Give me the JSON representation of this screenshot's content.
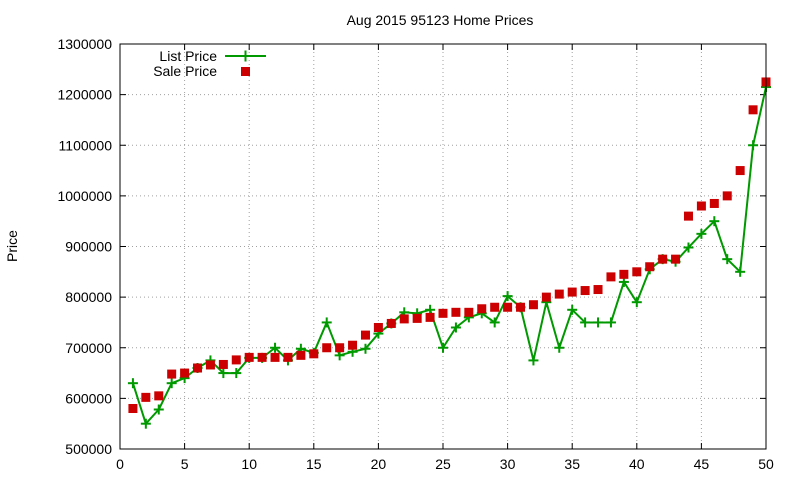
{
  "chart_data": {
    "type": "line",
    "title": "Aug 2015 95123 Home Prices",
    "xlabel": "",
    "ylabel": "Price",
    "xlim": [
      0,
      50
    ],
    "ylim": [
      500000,
      1300000
    ],
    "x_ticks": [
      0,
      5,
      10,
      15,
      20,
      25,
      30,
      35,
      40,
      45,
      50
    ],
    "y_ticks": [
      500000,
      600000,
      700000,
      800000,
      900000,
      1000000,
      1100000,
      1200000,
      1300000
    ],
    "grid": true,
    "legend_position": "top-left",
    "x": [
      1,
      2,
      3,
      4,
      5,
      6,
      7,
      8,
      9,
      10,
      11,
      12,
      13,
      14,
      15,
      16,
      17,
      18,
      19,
      20,
      21,
      22,
      23,
      24,
      25,
      26,
      27,
      28,
      29,
      30,
      31,
      32,
      33,
      34,
      35,
      36,
      37,
      38,
      39,
      40,
      41,
      42,
      43,
      44,
      45,
      46,
      47,
      48,
      49,
      50
    ],
    "series": [
      {
        "name": "List Price",
        "style": "line-plus",
        "color": "#009900",
        "values": [
          630000,
          550000,
          578000,
          630000,
          640000,
          660000,
          675000,
          650000,
          650000,
          680000,
          680000,
          700000,
          675000,
          698000,
          690000,
          750000,
          685000,
          692000,
          698000,
          728000,
          748000,
          770000,
          768000,
          775000,
          700000,
          740000,
          760000,
          768000,
          750000,
          802000,
          780000,
          675000,
          790000,
          700000,
          775000,
          750000,
          750000,
          750000,
          830000,
          790000,
          855000,
          875000,
          870000,
          898000,
          925000,
          950000,
          875000,
          850000,
          1100000,
          1215000
        ]
      },
      {
        "name": "Sale Price",
        "style": "square",
        "color": "#cc0000",
        "values": [
          580000,
          602000,
          605000,
          648000,
          650000,
          660000,
          666000,
          667000,
          676000,
          681000,
          681000,
          681000,
          681000,
          685000,
          688000,
          700000,
          700000,
          705000,
          725000,
          740000,
          748000,
          757000,
          758000,
          760000,
          768000,
          770000,
          770000,
          777000,
          780000,
          780000,
          780000,
          785000,
          800000,
          806000,
          810000,
          813000,
          815000,
          840000,
          845000,
          850000,
          860000,
          875000,
          875000,
          960000,
          980000,
          985000,
          1000000,
          1050000,
          1170000,
          1225000
        ]
      }
    ]
  }
}
